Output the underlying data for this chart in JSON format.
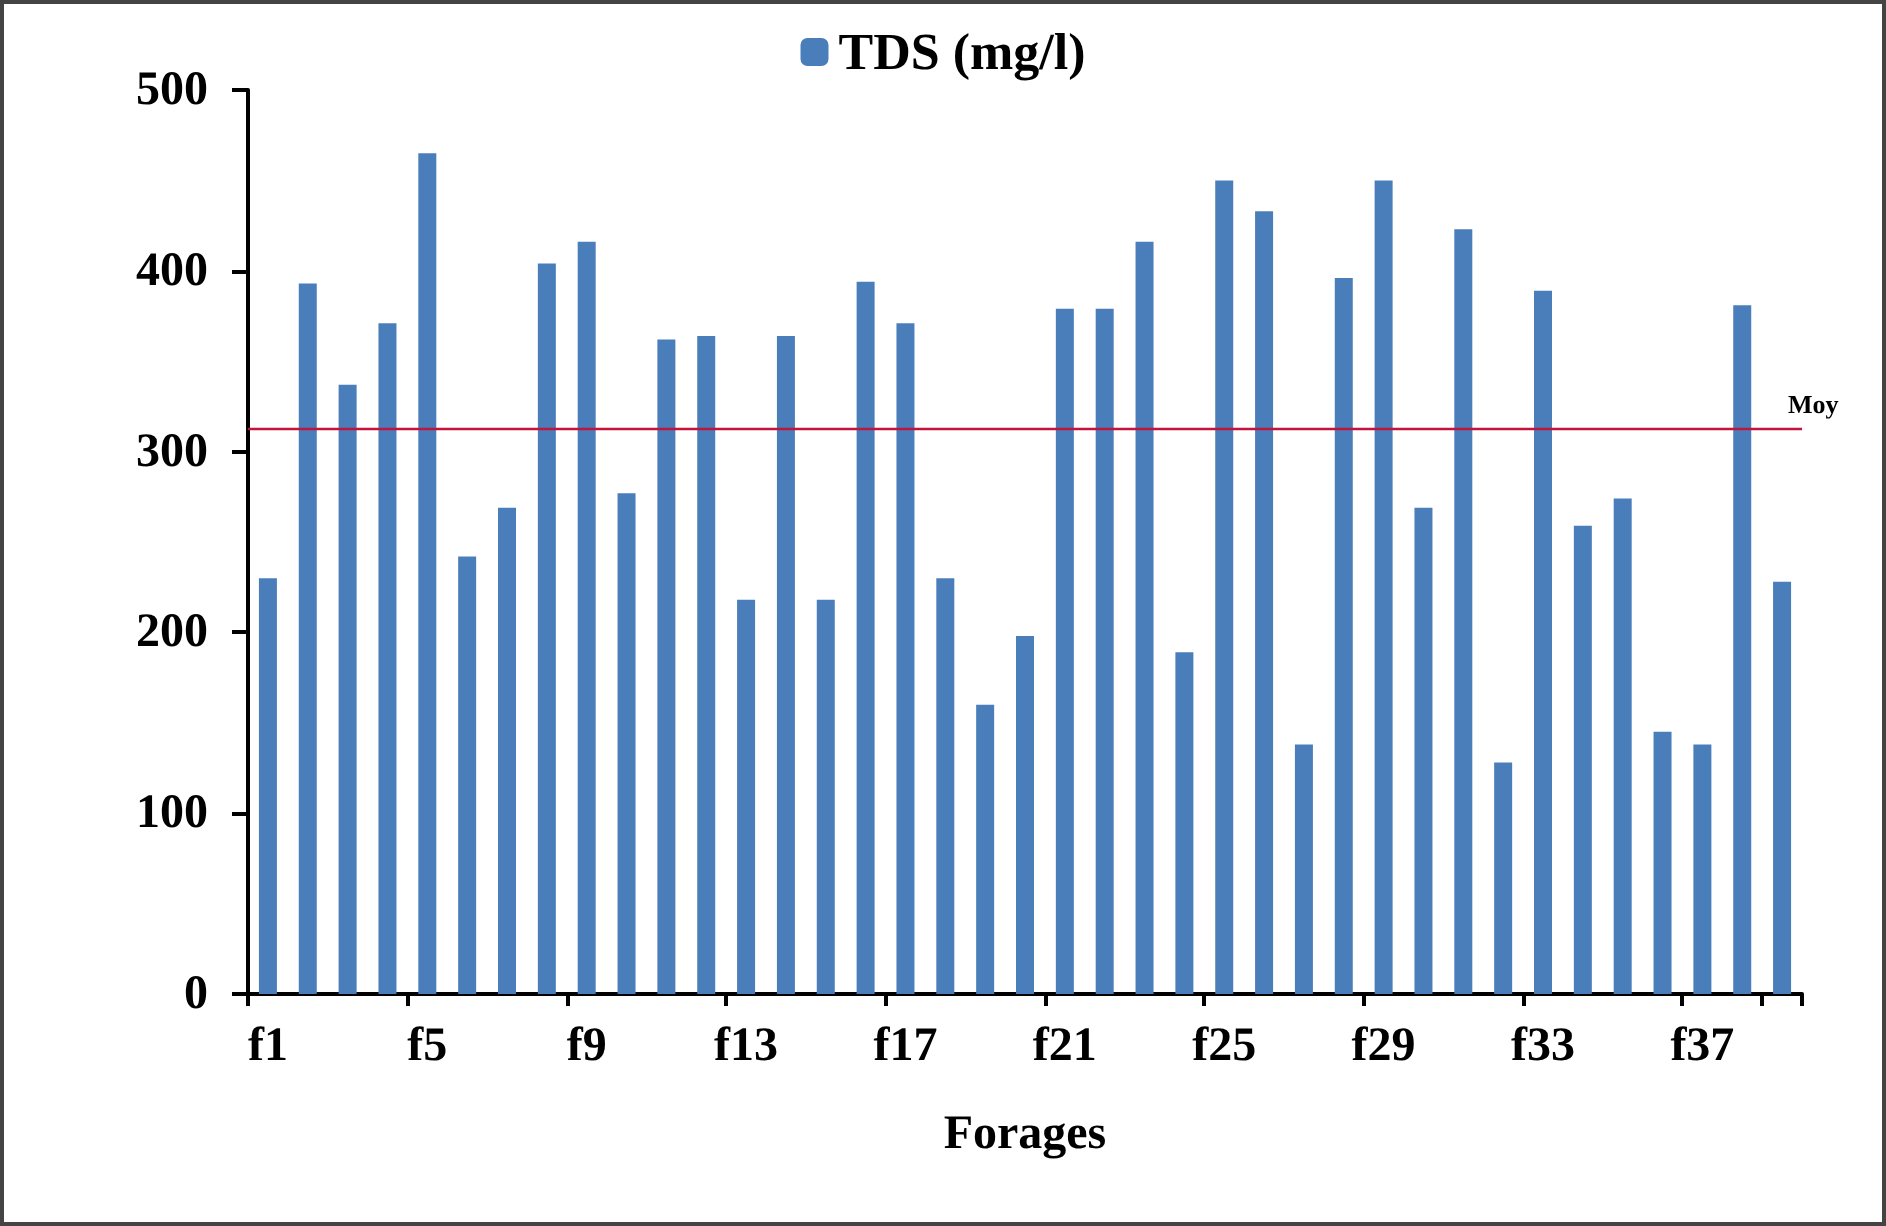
{
  "chart_data": {
    "type": "bar",
    "xlabel": "Forages",
    "categories": [
      "f1",
      null,
      null,
      null,
      "f5",
      null,
      null,
      null,
      "f9",
      null,
      null,
      null,
      "f13",
      null,
      null,
      null,
      "f17",
      null,
      null,
      null,
      "f21",
      null,
      null,
      null,
      "f25",
      null,
      null,
      null,
      "f29",
      null,
      null,
      null,
      "f33",
      null,
      null,
      null,
      "f37",
      null,
      null
    ],
    "series": [
      {
        "name": "TDS (mg/l)",
        "color": "#4a7ebb",
        "values": [
          230,
          393,
          337,
          371,
          465,
          242,
          269,
          404,
          416,
          277,
          362,
          364,
          218,
          364,
          218,
          394,
          371,
          230,
          160,
          198,
          379,
          379,
          416,
          189,
          450,
          433,
          138,
          396,
          450,
          269,
          423,
          128,
          389,
          259,
          274,
          145,
          138,
          381,
          228
        ]
      }
    ],
    "ylim": [
      0,
      500
    ],
    "yticks": [
      0,
      100,
      200,
      300,
      400,
      500
    ],
    "grid": false,
    "legend": "top",
    "ref_lines": [
      {
        "axis": "y",
        "value": 313,
        "label": "Moy",
        "color": "#c0143c"
      }
    ]
  }
}
